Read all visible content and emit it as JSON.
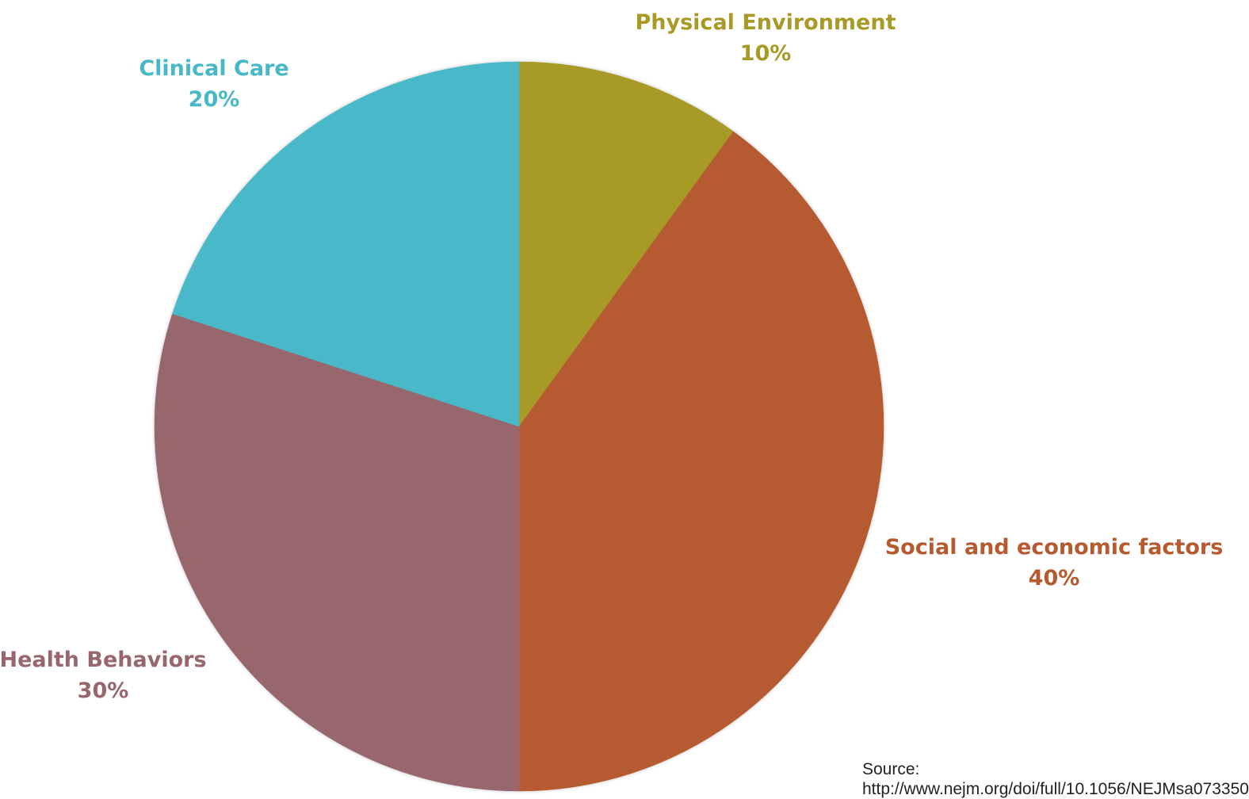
{
  "chart_data": {
    "type": "pie",
    "start_angle_deg": 0,
    "direction": "clockwise",
    "slices": [
      {
        "label": "Physical Environment",
        "value": 10,
        "value_label": "10%",
        "color": "#A89A27"
      },
      {
        "label": "Social and economic factors",
        "value": 40,
        "value_label": "40%",
        "color": "#B65A30"
      },
      {
        "label": "Health Behaviors",
        "value": 30,
        "value_label": "30%",
        "color": "#98666D"
      },
      {
        "label": "Clinical Care",
        "value": 20,
        "value_label": "20%",
        "color": "#48B8C8"
      }
    ]
  },
  "source": {
    "label": "Source:",
    "url": "http://www.nejm.org/doi/full/10.1056/NEJMsa073350"
  }
}
